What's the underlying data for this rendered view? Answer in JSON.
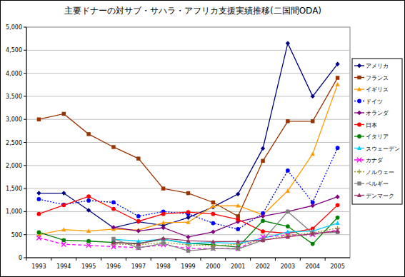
{
  "chart_data": {
    "type": "line",
    "title": "主要ドナーの対サブ・サハラ・アフリカ支援実績推移(二国間ODA)",
    "categories": [
      "1993",
      "1994",
      "1995",
      "1996",
      "1997",
      "1998",
      "1999",
      "2000",
      "2001",
      "2002",
      "2003",
      "2004",
      "2005"
    ],
    "ylim": [
      0,
      5000
    ],
    "yticks": [
      0,
      500,
      {
        "value": 1000,
        "label": "1,000"
      },
      {
        "value": 1500,
        "label": "1,500"
      },
      {
        "value": 2000,
        "label": "2,000"
      },
      {
        "value": 2500,
        "label": "2,500"
      },
      {
        "value": 3000,
        "label": "3,000"
      },
      {
        "value": 3500,
        "label": "3,500"
      },
      {
        "value": 4000,
        "label": "4,000"
      },
      {
        "value": 4500,
        "label": "4,500"
      },
      {
        "value": 5000,
        "label": "5,000"
      }
    ],
    "grid": true,
    "legend": "right",
    "series": [
      {
        "name": "アメリカ",
        "color": "#000080",
        "marker": "diamond",
        "line_style": "solid",
        "values": [
          1400,
          1400,
          1030,
          650,
          780,
          700,
          870,
          1100,
          1380,
          2370,
          4650,
          3500,
          4200
        ]
      },
      {
        "name": "フランス",
        "color": "#993300",
        "marker": "square",
        "line_style": "solid",
        "values": [
          3000,
          3120,
          2680,
          2400,
          2150,
          1500,
          1400,
          1200,
          900,
          2100,
          2960,
          2960,
          3900
        ]
      },
      {
        "name": "イギリス",
        "color": "#ff9900",
        "marker": "triangle",
        "line_style": "solid",
        "values": [
          500,
          610,
          580,
          620,
          600,
          760,
          770,
          1120,
          1130,
          930,
          1450,
          2250,
          3760
        ]
      },
      {
        "name": "ドイツ",
        "color": "#0000ff",
        "marker": "circle",
        "line_style": "dotted",
        "values": [
          1270,
          1150,
          1240,
          1200,
          900,
          1000,
          950,
          750,
          620,
          960,
          1890,
          1200,
          2380
        ]
      },
      {
        "name": "オランダ",
        "color": "#800080",
        "marker": "diamond",
        "line_style": "solid",
        "values": [
          null,
          null,
          null,
          660,
          580,
          650,
          450,
          560,
          780,
          900,
          1000,
          1130,
          1320
        ]
      },
      {
        "name": "日本",
        "color": "#ff0000",
        "marker": "circle",
        "line_style": "solid",
        "values": [
          950,
          1140,
          1330,
          1060,
          790,
          950,
          990,
          950,
          830,
          570,
          530,
          630,
          1140
        ]
      },
      {
        "name": "イタリア",
        "color": "#008000",
        "marker": "circle",
        "line_style": "solid",
        "values": [
          550,
          380,
          360,
          330,
          310,
          400,
          310,
          280,
          230,
          800,
          680,
          300,
          870
        ]
      },
      {
        "name": "スウェーデン",
        "color": "#00ccff",
        "marker": "triangle",
        "line_style": "solid",
        "values": [
          null,
          null,
          null,
          400,
          360,
          400,
          310,
          330,
          310,
          420,
          560,
          580,
          750
        ]
      },
      {
        "name": "カナダ",
        "color": "#ff00ff",
        "marker": "x",
        "line_style": "dashed",
        "values": [
          430,
          290,
          270,
          240,
          220,
          280,
          200,
          200,
          200,
          450,
          490,
          500,
          600
        ]
      },
      {
        "name": "ノルウェー",
        "color": "#999933",
        "marker": "plus",
        "line_style": "dotted",
        "values": [
          null,
          null,
          null,
          300,
          280,
          330,
          280,
          260,
          290,
          380,
          480,
          540,
          640
        ]
      },
      {
        "name": "ベルギー",
        "color": "#808080",
        "marker": "square",
        "line_style": "solid",
        "values": [
          null,
          null,
          null,
          410,
          210,
          310,
          150,
          200,
          190,
          380,
          1000,
          530,
          550
        ]
      },
      {
        "name": "デンマーク",
        "color": "#993366",
        "marker": "triangle",
        "line_style": "solid",
        "values": [
          null,
          null,
          null,
          330,
          300,
          420,
          370,
          350,
          350,
          380,
          450,
          520,
          580
        ]
      }
    ]
  }
}
